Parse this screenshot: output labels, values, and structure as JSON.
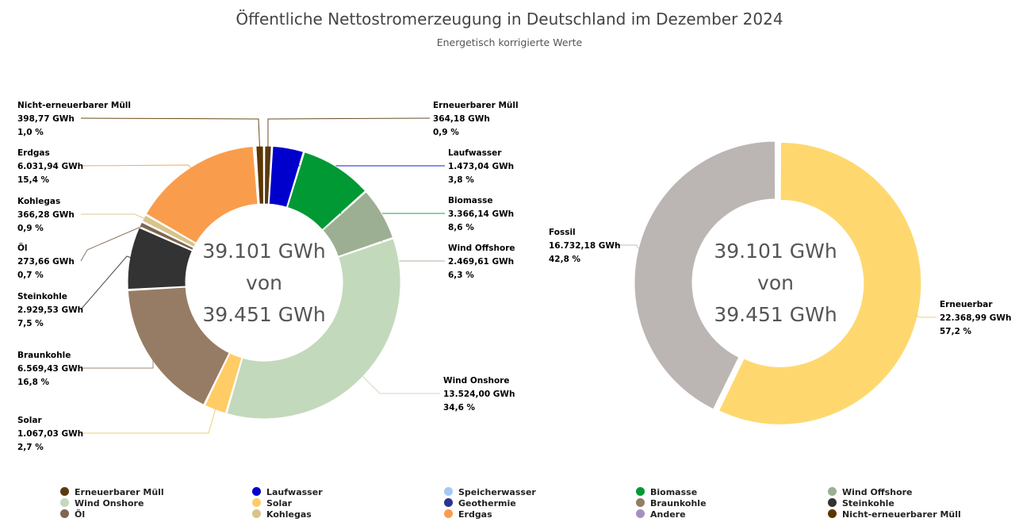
{
  "title": "Öffentliche Nettostromerzeugung in Deutschland im Dezember 2024",
  "subtitle": "Energetisch korrigierte Werte",
  "chart_data": [
    {
      "type": "pie",
      "variant": "donut",
      "center_lines": [
        "39.101 GWh",
        "von",
        "39.451 GWh"
      ],
      "slices": [
        {
          "name": "Erneuerbarer Müll",
          "value": 364.18,
          "value_label": "364,18 GWh",
          "pct_label": "0,9 %",
          "color": "#5a3a10"
        },
        {
          "name": "Laufwasser",
          "value": 1473.04,
          "value_label": "1.473,04 GWh",
          "pct_label": "3,8 %",
          "color": "#0000cc"
        },
        {
          "name": "Biomasse",
          "value": 3366.14,
          "value_label": "3.366,14 GWh",
          "pct_label": "8,6 %",
          "color": "#009933"
        },
        {
          "name": "Wind Offshore",
          "value": 2469.61,
          "value_label": "2.469,61 GWh",
          "pct_label": "6,3 %",
          "color": "#9caf92"
        },
        {
          "name": "Wind Onshore",
          "value": 13524.0,
          "value_label": "13.524,00 GWh",
          "pct_label": "34,6 %",
          "color": "#c3d9bb"
        },
        {
          "name": "Solar",
          "value": 1067.03,
          "value_label": "1.067,03 GWh",
          "pct_label": "2,7 %",
          "color": "#ffcc66"
        },
        {
          "name": "Braunkohle",
          "value": 6569.43,
          "value_label": "6.569,43 GWh",
          "pct_label": "16,8 %",
          "color": "#967c64"
        },
        {
          "name": "Steinkohle",
          "value": 2929.53,
          "value_label": "2.929,53 GWh",
          "pct_label": "7,5 %",
          "color": "#333333"
        },
        {
          "name": "Öl",
          "value": 273.66,
          "value_label": "273,66 GWh",
          "pct_label": "0,7 %",
          "color": "#7f6650"
        },
        {
          "name": "Kohlegas",
          "value": 366.28,
          "value_label": "366,28 GWh",
          "pct_label": "0,9 %",
          "color": "#d8c38a"
        },
        {
          "name": "Erdgas",
          "value": 6031.94,
          "value_label": "6.031,94 GWh",
          "pct_label": "15,4 %",
          "color": "#f99d4d"
        },
        {
          "name": "Andere",
          "value": 70.0,
          "color": "#a690c0"
        },
        {
          "name": "Nicht-erneuerbarer Müll",
          "value": 398.77,
          "value_label": "398,77 GWh",
          "pct_label": "1,0 %",
          "color": "#5c3600"
        }
      ]
    },
    {
      "type": "pie",
      "variant": "donut",
      "center_lines": [
        "39.101 GWh",
        "von",
        "39.451 GWh"
      ],
      "slices": [
        {
          "name": "Erneuerbar",
          "value": 22368.99,
          "value_label": "22.368,99 GWh",
          "pct_label": "57,2 %",
          "color": "#fed86f"
        },
        {
          "name": "Fossil",
          "value": 16732.18,
          "value_label": "16.732,18 GWh",
          "pct_label": "42,8 %",
          "color": "#bbb6b3"
        }
      ]
    }
  ],
  "legend": [
    {
      "label": "Erneuerbarer Müll",
      "color": "#5a3a10"
    },
    {
      "label": "Laufwasser",
      "color": "#0000cc"
    },
    {
      "label": "Speicherwasser",
      "color": "#a8c8f4"
    },
    {
      "label": "Biomasse",
      "color": "#009933"
    },
    {
      "label": "Wind Offshore",
      "color": "#9caf92"
    },
    {
      "label": "Wind Onshore",
      "color": "#c3d9bb"
    },
    {
      "label": "Solar",
      "color": "#ffcc66"
    },
    {
      "label": "Geothermie",
      "color": "#2a3590"
    },
    {
      "label": "Braunkohle",
      "color": "#967c64"
    },
    {
      "label": "Steinkohle",
      "color": "#333333"
    },
    {
      "label": "Öl",
      "color": "#7f6650"
    },
    {
      "label": "Kohlegas",
      "color": "#d8c38a"
    },
    {
      "label": "Erdgas",
      "color": "#f99d4d"
    },
    {
      "label": "Andere",
      "color": "#a690c0"
    },
    {
      "label": "Nicht-erneuerbarer Müll",
      "color": "#5c3600"
    }
  ]
}
